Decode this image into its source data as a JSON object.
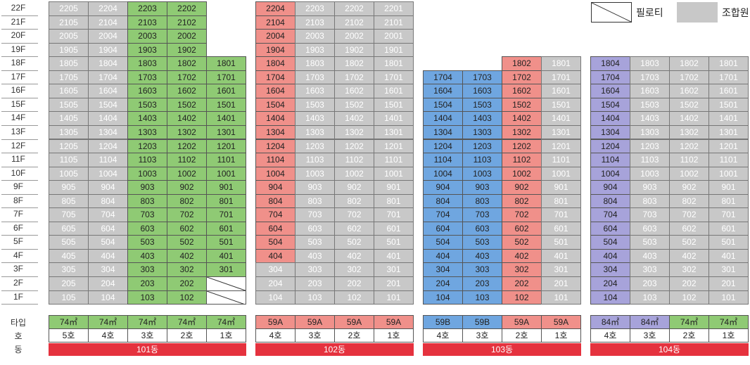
{
  "floors": [
    "22F",
    "21F",
    "20F",
    "19F",
    "18F",
    "17F",
    "16F",
    "15F",
    "14F",
    "13F",
    "12F",
    "11F",
    "10F",
    "9F",
    "8F",
    "7F",
    "6F",
    "5F",
    "4F",
    "3F",
    "2F",
    "1F"
  ],
  "row_labels": {
    "type": "타입",
    "unit": "호",
    "building": "동"
  },
  "legend": {
    "piloti": "필로티",
    "union": "조합원"
  },
  "buildings": [
    {
      "name": "101동",
      "top_floor": 22,
      "lines": [
        {
          "suffix": "05",
          "top": 22,
          "color": "u",
          "type": "74㎡",
          "unit": "5호"
        },
        {
          "suffix": "04",
          "top": 22,
          "color": "u",
          "type": "74㎡",
          "unit": "4호"
        },
        {
          "suffix": "03",
          "top": 22,
          "color": "g",
          "type": "74㎡",
          "unit": "3호"
        },
        {
          "suffix": "02",
          "top": 22,
          "color": "g",
          "type": "74㎡",
          "unit": "2호"
        },
        {
          "suffix": "01",
          "top": 18,
          "color": "g",
          "type": "74㎡",
          "unit": "1호",
          "piloti_to": 2
        }
      ],
      "type_colors": [
        "g",
        "g",
        "g",
        "g",
        "g"
      ]
    },
    {
      "name": "102동",
      "top_floor": 22,
      "lines": [
        {
          "suffix": "04",
          "top": 22,
          "color": "r",
          "color_from": 4,
          "type": "59A",
          "unit": "4호"
        },
        {
          "suffix": "03",
          "top": 22,
          "color": "u",
          "type": "59A",
          "unit": "3호"
        },
        {
          "suffix": "02",
          "top": 22,
          "color": "u",
          "type": "59A",
          "unit": "2호"
        },
        {
          "suffix": "01",
          "top": 22,
          "color": "u",
          "type": "59A",
          "unit": "1호"
        }
      ],
      "type_colors": [
        "r",
        "r",
        "r",
        "r"
      ]
    },
    {
      "name": "103동",
      "top_floor": 18,
      "lines": [
        {
          "suffix": "04",
          "top": 17,
          "color": "b",
          "type": "59B",
          "unit": "4호"
        },
        {
          "suffix": "03",
          "top": 17,
          "color": "b",
          "type": "59B",
          "unit": "3호"
        },
        {
          "suffix": "02",
          "top": 18,
          "color": "r",
          "type": "59A",
          "unit": "2호"
        },
        {
          "suffix": "01",
          "top": 18,
          "color": "u",
          "type": "59A",
          "unit": "1호"
        }
      ],
      "type_colors": [
        "b",
        "b",
        "r",
        "r"
      ]
    },
    {
      "name": "104동",
      "top_floor": 18,
      "lines": [
        {
          "suffix": "04",
          "top": 18,
          "color": "p",
          "type": "84㎡",
          "unit": "4호"
        },
        {
          "suffix": "03",
          "top": 18,
          "color": "u",
          "type": "84㎡",
          "unit": "3호"
        },
        {
          "suffix": "02",
          "top": 18,
          "color": "u",
          "type": "74㎡",
          "unit": "2호"
        },
        {
          "suffix": "01",
          "top": 18,
          "color": "u",
          "type": "74㎡",
          "unit": "1호"
        }
      ],
      "type_colors": [
        "p",
        "p",
        "g",
        "g"
      ]
    }
  ]
}
